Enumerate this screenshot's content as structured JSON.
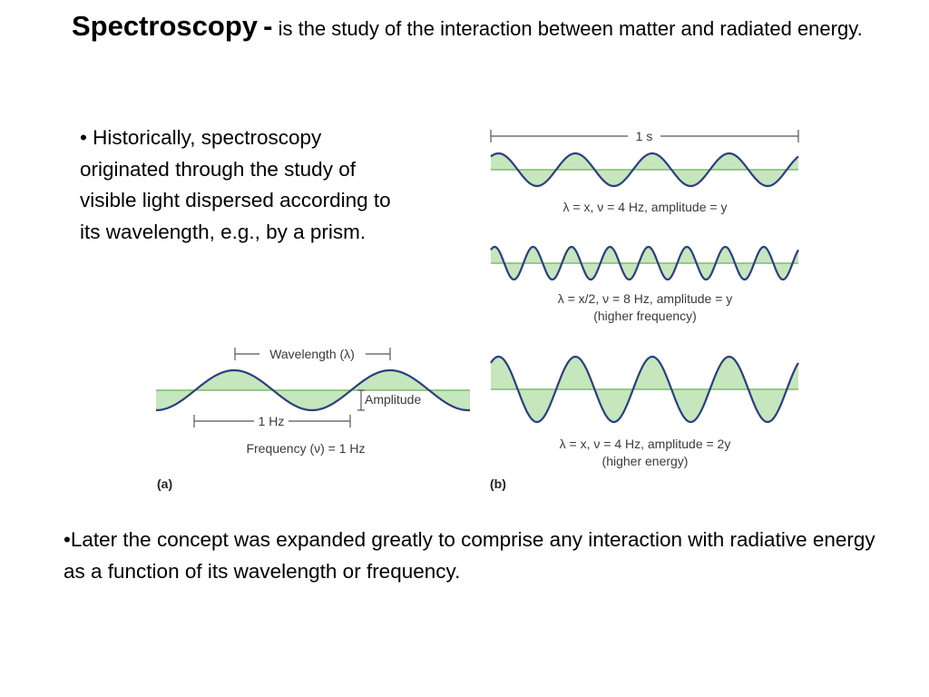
{
  "slide": {
    "title_term": "Spectroscopy",
    "title_dash": "-",
    "title_rest": "is the study of the interaction between matter and radiated energy.",
    "bullet_1": "• Historically, spectroscopy originated through the study of visible light dispersed according to its wavelength, e.g., by a prism.",
    "bullet_2": "•Later the concept was expanded greatly to comprise any interaction with radiative energy as a function of its wavelength or frequency."
  },
  "figure": {
    "colors": {
      "wave": "#2b3f7e",
      "fill": "#c6e6bd",
      "axis": "#7dbb6c",
      "marker": "#555555"
    },
    "panel_a": {
      "tag": "(a)",
      "wavelength_label": "Wavelength (λ)",
      "amplitude_label": "Amplitude",
      "period_label": "1 Hz",
      "frequency_label": "Frequency (ν) = 1 Hz"
    },
    "panel_b": {
      "tag": "(b)",
      "time_label": "1 s",
      "waves": [
        {
          "frequency_hz": 4,
          "relative_amplitude": 1,
          "label": "λ = x, ν = 4 Hz, amplitude = y",
          "note": ""
        },
        {
          "frequency_hz": 8,
          "relative_amplitude": 1,
          "label": "λ = x/2, ν = 8 Hz, amplitude = y",
          "note": "(higher frequency)"
        },
        {
          "frequency_hz": 4,
          "relative_amplitude": 2,
          "label": "λ = x, ν = 4 Hz, amplitude = 2y",
          "note": "(higher energy)"
        }
      ]
    }
  }
}
